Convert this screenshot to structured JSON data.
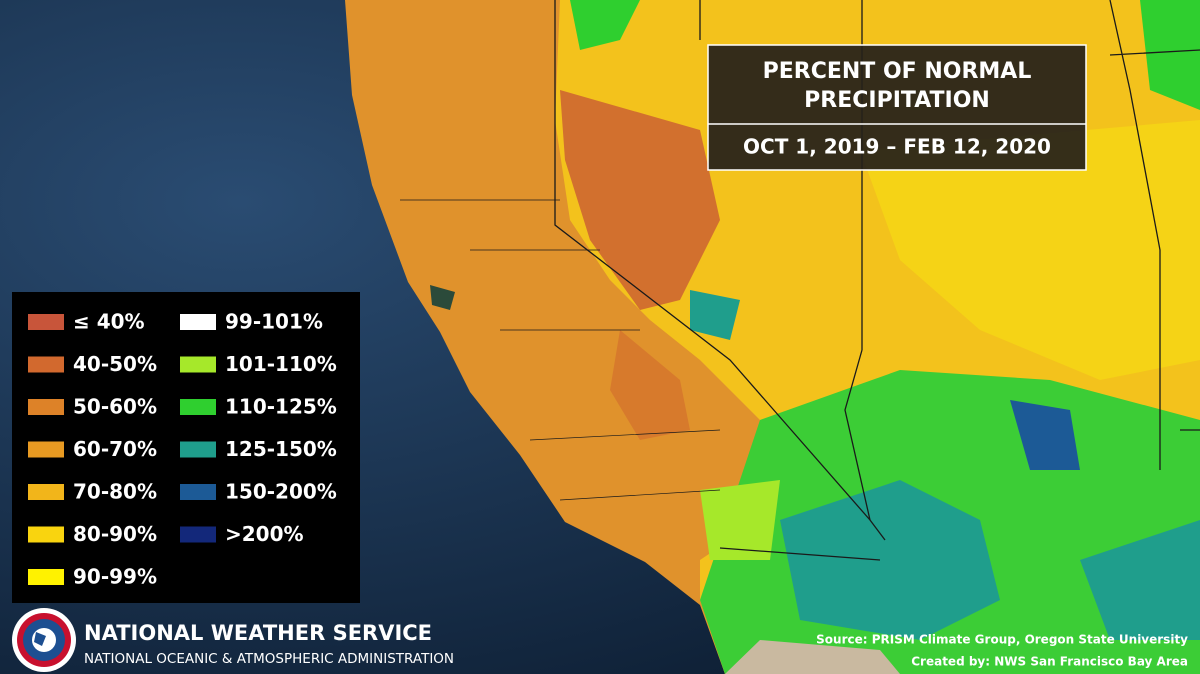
{
  "title": {
    "lines": [
      "PERCENT OF NORMAL",
      "PRECIPITATION"
    ],
    "period": "OCT 1, 2019 – FEB 12, 2020"
  },
  "legend": {
    "items": [
      {
        "label": "≤ 40%",
        "color": "#c8553a"
      },
      {
        "label": "40-50%",
        "color": "#d2692e"
      },
      {
        "label": "50-60%",
        "color": "#dd8228"
      },
      {
        "label": "60-70%",
        "color": "#e89a22"
      },
      {
        "label": "70-80%",
        "color": "#f2b51a"
      },
      {
        "label": "80-90%",
        "color": "#f9d40f"
      },
      {
        "label": "90-99%",
        "color": "#fff200"
      },
      {
        "label": "99-101%",
        "color": "#ffffff"
      },
      {
        "label": "101-110%",
        "color": "#a6e82a"
      },
      {
        "label": "110-125%",
        "color": "#2fcf2f"
      },
      {
        "label": "125-150%",
        "color": "#1f9e8c"
      },
      {
        "label": "150-200%",
        "color": "#1c5a96"
      },
      {
        "label": ">200%",
        "color": "#13287a"
      }
    ]
  },
  "footer": {
    "agency": "NATIONAL WEATHER SERVICE",
    "parent": "NATIONAL OCEANIC & ATMOSPHERIC ADMINISTRATION",
    "source": "Source: PRISM Climate Group, Oregon State University",
    "credit": "Created by: NWS San Francisco Bay Area"
  }
}
